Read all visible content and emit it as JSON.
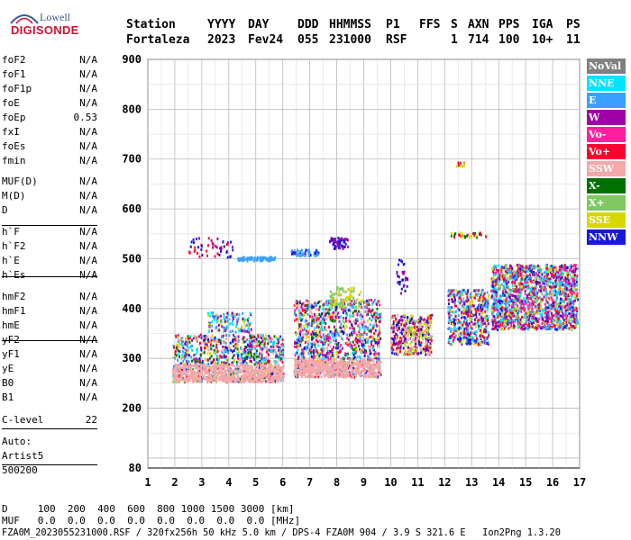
{
  "logo": {
    "top": "Lowell",
    "bottom": "DIGISONDE"
  },
  "header": {
    "labels": [
      "Station",
      "YYYY",
      "DAY",
      "DDD",
      "HHMMSS",
      "P1",
      "FFS",
      "S",
      "AXN",
      "PPS",
      "IGA",
      "PS"
    ],
    "values": [
      "Fortaleza",
      "2023",
      "Fev24",
      "055",
      "231000",
      "RSF",
      "",
      "1",
      "714",
      "100",
      "10+",
      "11"
    ]
  },
  "params": {
    "group1": [
      {
        "name": "foF2",
        "value": "N/A"
      },
      {
        "name": "foF1",
        "value": "N/A"
      },
      {
        "name": "foF1p",
        "value": "N/A"
      },
      {
        "name": "foE",
        "value": "N/A"
      },
      {
        "name": "foEp",
        "value": "0.53"
      },
      {
        "name": "fxI",
        "value": "N/A"
      },
      {
        "name": "foEs",
        "value": "N/A"
      },
      {
        "name": "fmin",
        "value": "N/A"
      }
    ],
    "group2": [
      {
        "name": "MUF(D)",
        "value": "N/A"
      },
      {
        "name": "M(D)",
        "value": "N/A"
      },
      {
        "name": "D",
        "value": "N/A"
      }
    ],
    "group3": [
      {
        "name": "h`F",
        "value": "N/A"
      },
      {
        "name": "h`F2",
        "value": "N/A"
      },
      {
        "name": "h`E",
        "value": "N/A"
      },
      {
        "name": "h`Es",
        "value": "N/A"
      }
    ],
    "group4": [
      {
        "name": "hmF2",
        "value": "N/A"
      },
      {
        "name": "hmF1",
        "value": "N/A"
      },
      {
        "name": "hmE",
        "value": "N/A"
      },
      {
        "name": "yF2",
        "value": "N/A"
      },
      {
        "name": "yF1",
        "value": "N/A"
      },
      {
        "name": "yE",
        "value": "N/A"
      },
      {
        "name": "B0",
        "value": "N/A"
      },
      {
        "name": "B1",
        "value": "N/A"
      }
    ],
    "clevel": {
      "name": "C-level",
      "value": "22"
    },
    "auto": [
      "Auto:",
      "Artist5",
      "500200"
    ]
  },
  "legend": [
    {
      "label": "NoVal",
      "color": "#808080"
    },
    {
      "label": "NNE",
      "color": "#00e5ff"
    },
    {
      "label": "E",
      "color": "#3aa0ff"
    },
    {
      "label": "W",
      "color": "#a000a8"
    },
    {
      "label": "Vo-",
      "color": "#ff20a0"
    },
    {
      "label": "Vo+",
      "color": "#ff0030"
    },
    {
      "label": "SSW",
      "color": "#f4a8a8"
    },
    {
      "label": "X-",
      "color": "#007000"
    },
    {
      "label": "X+",
      "color": "#80c860"
    },
    {
      "label": "SSE",
      "color": "#d8d800"
    },
    {
      "label": "NNW",
      "color": "#1818d8"
    }
  ],
  "footer": {
    "d_row": "D     100  200  400  600  800 1000 1500 3000 [km]",
    "muf_row": "MUF   0.0  0.0  0.0  0.0  0.0  0.0  0.0  0.0 [MHz]",
    "info": "FZA0M_2023055231000.RSF / 320fx256h 50 kHz 5.0 km / DPS-4 FZA0M 904 / 3.9 S 321.6 E   Ion2Png 1.3.20"
  },
  "chart_data": {
    "type": "scatter",
    "xlabel": "",
    "ylabel": "",
    "xlim": [
      1,
      17
    ],
    "ylim": [
      80,
      900
    ],
    "xticks": [
      1,
      2,
      3,
      4,
      5,
      6,
      7,
      8,
      9,
      10,
      11,
      12,
      13,
      14,
      15,
      16,
      17
    ],
    "yticks": [
      80,
      200,
      300,
      400,
      500,
      600,
      700,
      800,
      900
    ],
    "grid": true,
    "regions": [
      {
        "x": [
          1.9,
          6.0
        ],
        "y": [
          255,
          350
        ],
        "colors": [
          "SSW",
          "SSE",
          "E",
          "NNE",
          "NNW",
          "W",
          "Vo+",
          "X-"
        ],
        "density": 900
      },
      {
        "x": [
          1.9,
          6.0
        ],
        "y": [
          255,
          290
        ],
        "colors": [
          "SSW"
        ],
        "density": 600
      },
      {
        "x": [
          3.2,
          4.8
        ],
        "y": [
          355,
          395
        ],
        "colors": [
          "SSE",
          "E",
          "NNE",
          "W"
        ],
        "density": 120
      },
      {
        "x": [
          2.5,
          4.2
        ],
        "y": [
          505,
          545
        ],
        "colors": [
          "W",
          "Vo+",
          "NNW"
        ],
        "density": 50
      },
      {
        "x": [
          4.3,
          5.7
        ],
        "y": [
          498,
          506
        ],
        "colors": [
          "E"
        ],
        "density": 90
      },
      {
        "x": [
          6.4,
          9.6
        ],
        "y": [
          265,
          420
        ],
        "colors": [
          "SSE",
          "SSW",
          "NNW",
          "W",
          "Vo-",
          "Vo+",
          "E",
          "NNE",
          "X-"
        ],
        "density": 1100
      },
      {
        "x": [
          6.4,
          9.6
        ],
        "y": [
          265,
          300
        ],
        "colors": [
          "SSW"
        ],
        "density": 500
      },
      {
        "x": [
          7.7,
          8.9
        ],
        "y": [
          405,
          445
        ],
        "colors": [
          "SSE",
          "X+"
        ],
        "density": 80
      },
      {
        "x": [
          6.3,
          7.3
        ],
        "y": [
          508,
          520
        ],
        "colors": [
          "NNW",
          "E"
        ],
        "density": 50
      },
      {
        "x": [
          7.7,
          8.4
        ],
        "y": [
          522,
          545
        ],
        "colors": [
          "NNW",
          "W"
        ],
        "density": 60
      },
      {
        "x": [
          10.0,
          11.5
        ],
        "y": [
          310,
          390
        ],
        "colors": [
          "SSE",
          "SSW",
          "Vo+",
          "W",
          "NNW",
          "X+"
        ],
        "density": 400
      },
      {
        "x": [
          10.2,
          10.6
        ],
        "y": [
          430,
          500
        ],
        "colors": [
          "NNW",
          "W"
        ],
        "density": 30
      },
      {
        "x": [
          12.1,
          13.6
        ],
        "y": [
          330,
          440
        ],
        "colors": [
          "NNE",
          "E",
          "NNW",
          "W",
          "Vo+",
          "SSE"
        ],
        "density": 500
      },
      {
        "x": [
          12.2,
          13.5
        ],
        "y": [
          545,
          555
        ],
        "colors": [
          "X-",
          "SSE",
          "Vo+"
        ],
        "density": 30
      },
      {
        "x": [
          12.4,
          12.7
        ],
        "y": [
          688,
          696
        ],
        "colors": [
          "Vo+",
          "SSE"
        ],
        "density": 10
      },
      {
        "x": [
          13.7,
          16.9
        ],
        "y": [
          360,
          490
        ],
        "colors": [
          "W",
          "Vo-",
          "NNW",
          "NNE",
          "E",
          "SSE",
          "X+",
          "Vo+"
        ],
        "density": 1600
      }
    ]
  }
}
